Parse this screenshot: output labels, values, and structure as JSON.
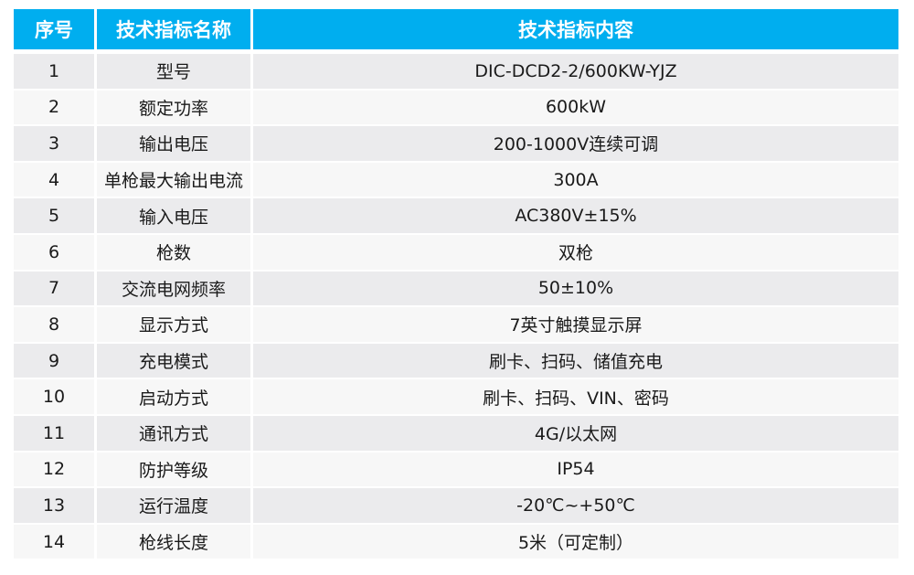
{
  "table": {
    "header": {
      "index": "序号",
      "name": "技术指标名称",
      "value": "技术指标内容"
    },
    "colors": {
      "header_bg": "#00aeef",
      "row_odd_bg": "#ebebed",
      "row_even_bg": "#f7f7f7"
    },
    "rows": [
      {
        "index": "1",
        "name": "型号",
        "value": "DIC-DCD2-2/600KW-YJZ"
      },
      {
        "index": "2",
        "name": "额定功率",
        "value": "600kW"
      },
      {
        "index": "3",
        "name": "输出电压",
        "value": "200-1000V连续可调"
      },
      {
        "index": "4",
        "name": "单枪最大输出电流",
        "value": "300A"
      },
      {
        "index": "5",
        "name": "输入电压",
        "value": "AC380V±15%"
      },
      {
        "index": "6",
        "name": "枪数",
        "value": "双枪"
      },
      {
        "index": "7",
        "name": "交流电网频率",
        "value": "50±10%"
      },
      {
        "index": "8",
        "name": "显示方式",
        "value": "7英寸触摸显示屏"
      },
      {
        "index": "9",
        "name": "充电模式",
        "value": "刷卡、扫码、储值充电"
      },
      {
        "index": "10",
        "name": "启动方式",
        "value": "刷卡、扫码、VIN、密码"
      },
      {
        "index": "11",
        "name": "通讯方式",
        "value": "4G/以太网"
      },
      {
        "index": "12",
        "name": "防护等级",
        "value": "IP54"
      },
      {
        "index": "13",
        "name": "运行温度",
        "value": "-20℃~+50℃"
      },
      {
        "index": "14",
        "name": "枪线长度",
        "value": "5米（可定制）"
      }
    ]
  }
}
